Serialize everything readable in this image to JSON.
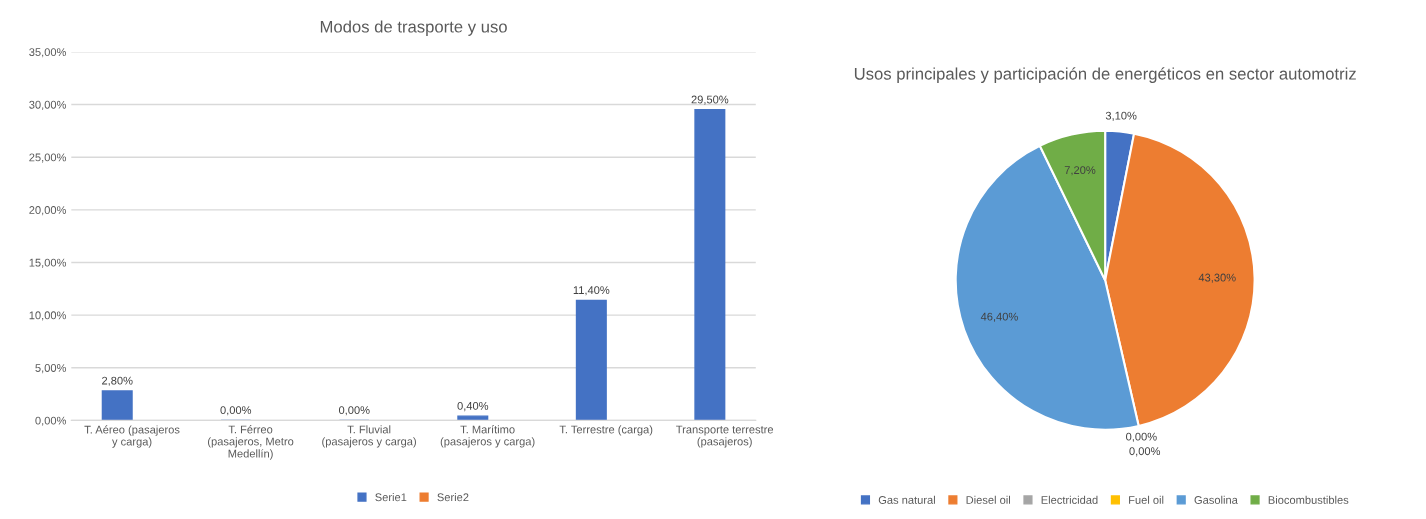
{
  "chart_data": [
    {
      "type": "bar",
      "title": "Modos de trasporte y uso",
      "categories": [
        "T. Aéreo (pasajeros y carga)",
        "T. Férreo (pasajeros, Metro Medellín)",
        "T. Fluvial (pasajeros y carga)",
        "T. Marítimo (pasajeros y carga)",
        "T. Terrestre (carga)",
        "Transporte terrestre (pasajeros)"
      ],
      "series": [
        {
          "name": "Serie1",
          "color": "#4472c4",
          "values": [
            2.8,
            0.0,
            0.0,
            0.4,
            11.4,
            29.5
          ],
          "value_labels": [
            "2,80%",
            "0,00%",
            "0,00%",
            "0,40%",
            "11,40%",
            "29,50%"
          ]
        },
        {
          "name": "Serie2",
          "color": "#ed7d31",
          "values": [
            null,
            null,
            null,
            null,
            null,
            null
          ]
        }
      ],
      "ylim": [
        0,
        35
      ],
      "yticks": [
        {
          "value": 0,
          "label": "0,00%"
        },
        {
          "value": 5,
          "label": "5,00%"
        },
        {
          "value": 10,
          "label": "10,00%"
        },
        {
          "value": 15,
          "label": "15,00%"
        },
        {
          "value": 20,
          "label": "20,00%"
        },
        {
          "value": 25,
          "label": "25,00%"
        },
        {
          "value": 30,
          "label": "30,00%"
        },
        {
          "value": 35,
          "label": "35,00%"
        }
      ],
      "grid": "y",
      "legend": "bottom"
    },
    {
      "type": "pie",
      "title": "Usos principales y participación de energéticos en sector automotriz",
      "categories": [
        "Gas natural",
        "Diesel oil",
        "Electricidad",
        "Fuel oil",
        "Gasolina",
        "Biocombustibles"
      ],
      "values": [
        3.1,
        43.3,
        0.0,
        0.0,
        46.4,
        7.2
      ],
      "value_labels": [
        "3,10%",
        "43,30%",
        "0,00%",
        "0,00%",
        "46,40%",
        "7,20%"
      ],
      "colors": [
        "#4472c4",
        "#ed7d31",
        "#a5a5a5",
        "#ffc000",
        "#5b9bd5",
        "#70ad47"
      ],
      "legend": "bottom"
    }
  ]
}
